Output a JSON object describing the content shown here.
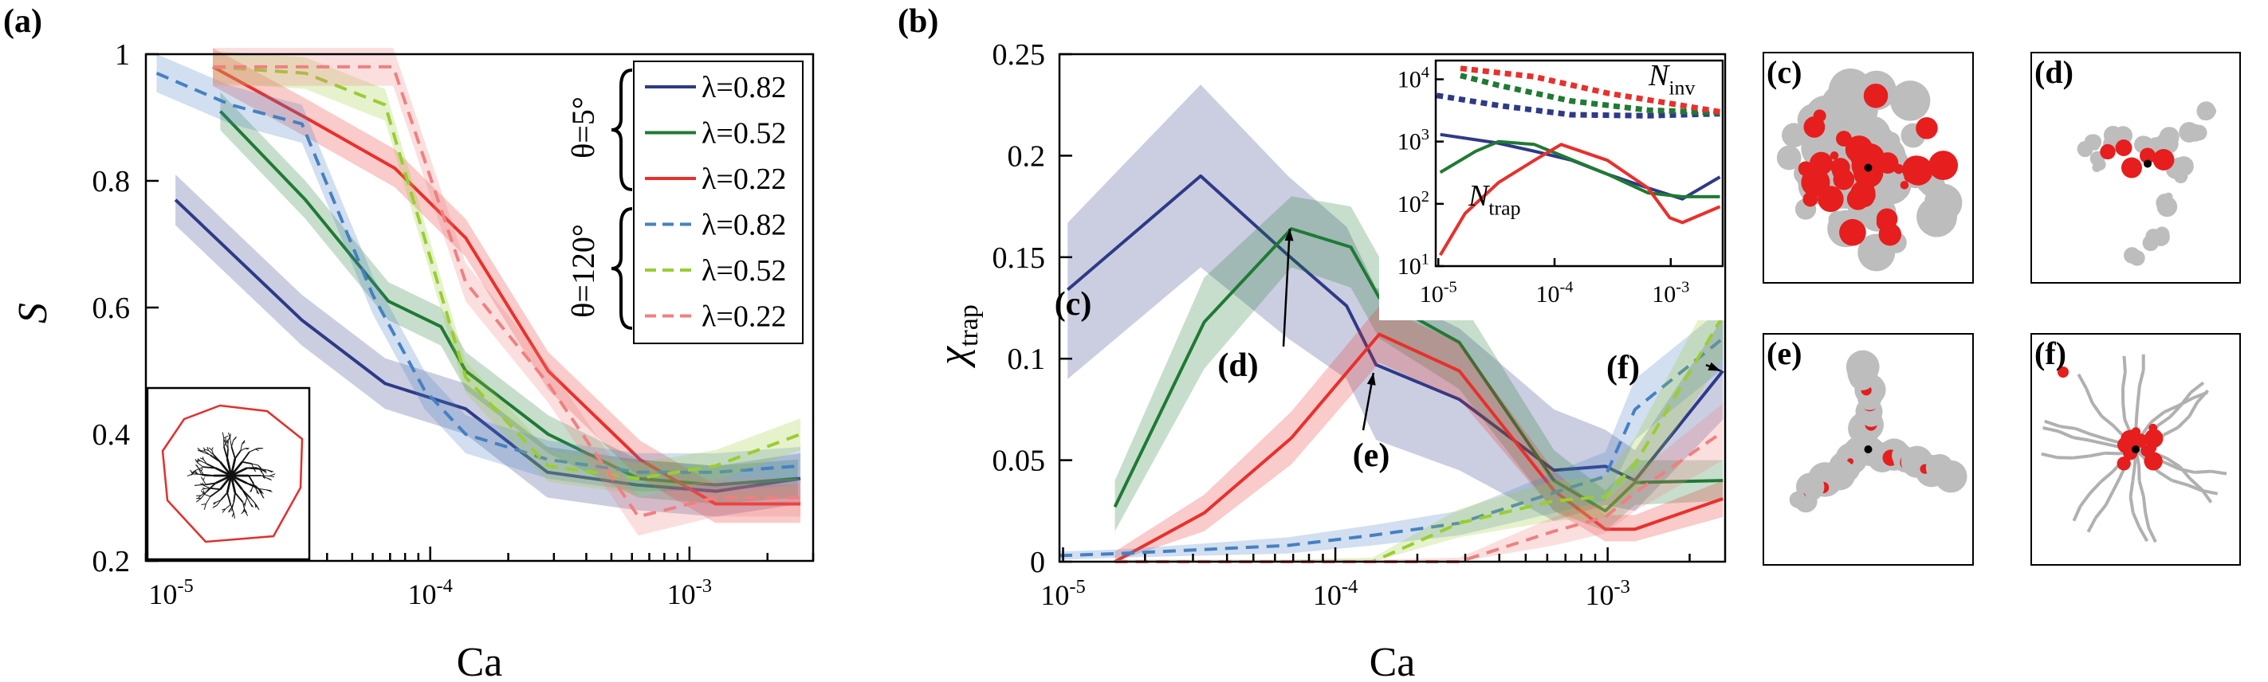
{
  "figure": {
    "panels": {
      "a": {
        "label": "(a)"
      },
      "b": {
        "label": "(b)"
      },
      "c": {
        "label": "(c)"
      },
      "d": {
        "label": "(d)"
      },
      "e": {
        "label": "(e)"
      },
      "f": {
        "label": "(f)"
      }
    }
  },
  "chart_data": [
    {
      "id": "panel-a",
      "type": "line",
      "xscale": "log",
      "xlim": [
        8e-06,
        0.003
      ],
      "ylim": [
        0.2,
        1.0
      ],
      "xlabel": "Ca",
      "ylabel": "S",
      "xticks": [
        {
          "value": 1e-05,
          "base": "10",
          "exp": "-5"
        },
        {
          "value": 0.0001,
          "base": "10",
          "exp": "-4"
        },
        {
          "value": 0.001,
          "base": "10",
          "exp": "-3"
        }
      ],
      "yticks": [
        {
          "value": 0.2,
          "label": "0.2"
        },
        {
          "value": 0.4,
          "label": "0.4"
        },
        {
          "value": 0.6,
          "label": "0.6"
        },
        {
          "value": 0.8,
          "label": "0.8"
        },
        {
          "value": 1.0,
          "label": "1"
        }
      ],
      "legend": {
        "group_labels": [
          "θ=5°",
          "θ=120°"
        ],
        "entries": [
          {
            "label": "λ=0.82",
            "series": 0
          },
          {
            "label": "λ=0.52",
            "series": 1
          },
          {
            "label": "λ=0.22",
            "series": 2
          },
          {
            "label": "λ=0.82",
            "series": 3
          },
          {
            "label": "λ=0.52",
            "series": 4
          },
          {
            "label": "λ=0.22",
            "series": 5
          }
        ]
      },
      "inset": {
        "description": "dendritic invasion pattern with convex hull"
      },
      "series": [
        {
          "name": "θ=5°, λ=0.82",
          "color": "#2e3a87",
          "dash": false,
          "x": [
            1.04e-05,
            3.2e-05,
            6.7e-05,
            0.000137,
            0.000283,
            0.000626,
            0.00127,
            0.00268
          ],
          "y": [
            0.77,
            0.58,
            0.48,
            0.44,
            0.34,
            0.32,
            0.31,
            0.33
          ],
          "band": 0.04
        },
        {
          "name": "θ=5°, λ=0.52",
          "color": "#1f7a33",
          "dash": false,
          "x": [
            1.55e-05,
            3.3e-05,
            6.9e-05,
            0.00011,
            0.000137,
            0.000285,
            0.000635,
            0.00126,
            0.00262
          ],
          "y": [
            0.91,
            0.77,
            0.61,
            0.57,
            0.5,
            0.4,
            0.33,
            0.32,
            0.33
          ],
          "band": 0.03
        },
        {
          "name": "θ=5°, λ=0.22",
          "color": "#e8302c",
          "dash": false,
          "x": [
            1.45e-05,
            3.3e-05,
            7.3e-05,
            0.000137,
            0.000285,
            0.000645,
            0.00126,
            0.00268
          ],
          "y": [
            0.98,
            0.9,
            0.82,
            0.71,
            0.5,
            0.36,
            0.29,
            0.29
          ],
          "band": 0.03
        },
        {
          "name": "θ=120°, λ=0.82",
          "color": "#4680c2",
          "dash": true,
          "x": [
            8.8e-06,
            1.7e-05,
            3.2e-05,
            6e-05,
            9.5e-05,
            0.000137,
            0.000285,
            0.000635,
            0.00126,
            0.00268
          ],
          "y": [
            0.97,
            0.92,
            0.89,
            0.62,
            0.47,
            0.4,
            0.36,
            0.34,
            0.34,
            0.35
          ],
          "band": 0.03
        },
        {
          "name": "θ=120°, λ=0.52",
          "color": "#9acd32",
          "dash": true,
          "x": [
            1.45e-05,
            3.3e-05,
            6.7e-05,
            0.000137,
            0.000285,
            0.000635,
            0.00126,
            0.00268
          ],
          "y": [
            0.98,
            0.97,
            0.92,
            0.49,
            0.35,
            0.33,
            0.35,
            0.4
          ],
          "band": 0.025
        },
        {
          "name": "θ=120°, λ=0.22",
          "color": "#f08080",
          "dash": true,
          "x": [
            1.45e-05,
            3.3e-05,
            7.2e-05,
            0.000137,
            0.000285,
            0.000635,
            0.00126,
            0.00268
          ],
          "y": [
            0.98,
            0.98,
            0.98,
            0.64,
            0.48,
            0.27,
            0.3,
            0.3
          ],
          "band": 0.03
        }
      ]
    },
    {
      "id": "panel-b",
      "type": "line",
      "xscale": "log",
      "xlim": [
        9.7e-06,
        0.0027
      ],
      "ylim": [
        0,
        0.25
      ],
      "xlabel": "Ca",
      "ylabel": "χtrap",
      "xticks": [
        {
          "value": 1e-05,
          "base": "10",
          "exp": "-5"
        },
        {
          "value": 0.0001,
          "base": "10",
          "exp": "-4"
        },
        {
          "value": 0.001,
          "base": "10",
          "exp": "-3"
        }
      ],
      "yticks": [
        {
          "value": 0,
          "label": "0"
        },
        {
          "value": 0.05,
          "label": "0.05"
        },
        {
          "value": 0.1,
          "label": "0.1"
        },
        {
          "value": 0.15,
          "label": "0.15"
        },
        {
          "value": 0.2,
          "label": "0.2"
        },
        {
          "value": 0.25,
          "label": "0.25"
        }
      ],
      "annotations": [
        {
          "label": "(c)",
          "target": [
            1.04e-05,
            0.134
          ]
        },
        {
          "label": "(d)",
          "target": [
            6.8e-05,
            0.164
          ]
        },
        {
          "label": "(e)",
          "target": [
            0.000138,
            0.093
          ]
        },
        {
          "label": "(f)",
          "target": [
            0.0026,
            0.094
          ]
        }
      ],
      "series": [
        {
          "name": "θ=5°, λ=0.82",
          "color": "#2e3a87",
          "dash": false,
          "x": [
            1.04e-05,
            3.2e-05,
            6.7e-05,
            0.00011,
            0.000141,
            0.000285,
            0.000635,
            0.00098,
            0.00126,
            0.00265
          ],
          "y": [
            0.134,
            0.19,
            0.151,
            0.126,
            0.097,
            0.08,
            0.045,
            0.047,
            0.04,
            0.094
          ],
          "lower": [
            0.09,
            0.145,
            0.11,
            0.09,
            0.06,
            0.045,
            0.02,
            0.028,
            0.025,
            0.07
          ],
          "upper": [
            0.167,
            0.235,
            0.19,
            0.165,
            0.135,
            0.115,
            0.075,
            0.065,
            0.055,
            0.12
          ]
        },
        {
          "name": "θ=5°, λ=0.52",
          "color": "#1f7a33",
          "dash": false,
          "x": [
            1.55e-05,
            3.3e-05,
            6.9e-05,
            0.000114,
            0.000145,
            0.000285,
            0.000635,
            0.00098,
            0.00126,
            0.00265
          ],
          "y": [
            0.027,
            0.118,
            0.164,
            0.155,
            0.13,
            0.108,
            0.04,
            0.025,
            0.039,
            0.04
          ],
          "lower": [
            0.015,
            0.095,
            0.145,
            0.135,
            0.11,
            0.085,
            0.025,
            0.015,
            0.028,
            0.03
          ],
          "upper": [
            0.04,
            0.14,
            0.18,
            0.175,
            0.15,
            0.13,
            0.055,
            0.035,
            0.05,
            0.05
          ]
        },
        {
          "name": "θ=5°, λ=0.22",
          "color": "#e8302c",
          "dash": false,
          "x": [
            1.55e-05,
            3.3e-05,
            6.9e-05,
            0.000145,
            0.000285,
            0.000635,
            0.00098,
            0.00126,
            0.00265
          ],
          "y": [
            0.0,
            0.024,
            0.061,
            0.112,
            0.094,
            0.035,
            0.016,
            0.016,
            0.031
          ],
          "lower": [
            0.0,
            0.015,
            0.048,
            0.098,
            0.08,
            0.025,
            0.01,
            0.01,
            0.022
          ],
          "upper": [
            0.005,
            0.033,
            0.074,
            0.126,
            0.108,
            0.045,
            0.023,
            0.023,
            0.04
          ]
        },
        {
          "name": "θ=120°, λ=0.82",
          "color": "#4680c2",
          "dash": true,
          "x": [
            9.7e-06,
            1.6e-05,
            3.3e-05,
            6.7e-05,
            0.000137,
            0.000285,
            0.000635,
            0.00098,
            0.00126,
            0.00265
          ],
          "y": [
            0.003,
            0.004,
            0.006,
            0.008,
            0.013,
            0.019,
            0.034,
            0.042,
            0.075,
            0.11
          ],
          "lower": [
            0.001,
            0.002,
            0.003,
            0.004,
            0.008,
            0.013,
            0.024,
            0.03,
            0.06,
            0.095
          ],
          "upper": [
            0.005,
            0.006,
            0.009,
            0.012,
            0.018,
            0.025,
            0.044,
            0.054,
            0.09,
            0.125
          ]
        },
        {
          "name": "θ=120°, λ=0.52",
          "color": "#9acd32",
          "dash": true,
          "x": [
            1.55e-05,
            3.3e-05,
            6.7e-05,
            0.000137,
            0.000285,
            0.000635,
            0.00098,
            0.00126,
            0.00265
          ],
          "y": [
            0.0,
            0.0,
            0.0,
            0.0,
            0.019,
            0.03,
            0.032,
            0.048,
            0.121
          ],
          "lower": [
            0.0,
            0.0,
            0.0,
            0.0,
            0.012,
            0.02,
            0.022,
            0.035,
            0.1
          ],
          "upper": [
            0.001,
            0.001,
            0.001,
            0.002,
            0.026,
            0.04,
            0.042,
            0.061,
            0.142
          ]
        },
        {
          "name": "θ=120°, λ=0.22",
          "color": "#f08080",
          "dash": true,
          "x": [
            1.55e-05,
            3.3e-05,
            6.7e-05,
            0.000137,
            0.000285,
            0.000635,
            0.00098,
            0.00126,
            0.00265
          ],
          "y": [
            0.0,
            0.0,
            0.0,
            0.0,
            0.0,
            0.015,
            0.022,
            0.034,
            0.064
          ],
          "lower": [
            0.0,
            0.0,
            0.0,
            0.0,
            0.0,
            0.008,
            0.014,
            0.025,
            0.05
          ],
          "upper": [
            0.001,
            0.001,
            0.001,
            0.001,
            0.002,
            0.022,
            0.03,
            0.043,
            0.078
          ]
        }
      ]
    },
    {
      "id": "panel-b-inset",
      "type": "line",
      "xscale": "log",
      "yscale": "log",
      "xlim": [
        9.5e-06,
        0.0028
      ],
      "ylim": [
        10,
        20000
      ],
      "xticks": [
        {
          "value": 1e-05,
          "base": "10",
          "exp": "-5"
        },
        {
          "value": 0.0001,
          "base": "10",
          "exp": "-4"
        },
        {
          "value": 0.001,
          "base": "10",
          "exp": "-3"
        }
      ],
      "yticks": [
        {
          "value": 10,
          "base": "10",
          "exp": "1"
        },
        {
          "value": 100,
          "base": "10",
          "exp": "2"
        },
        {
          "value": 1000,
          "base": "10",
          "exp": "3"
        },
        {
          "value": 10000,
          "base": "10",
          "exp": "4"
        }
      ],
      "labels": [
        {
          "text": "N",
          "sub": "inv"
        },
        {
          "text": "N",
          "sub": "trap"
        }
      ],
      "series": [
        {
          "name": "Ninv λ=0.82",
          "color": "#2e3a87",
          "dash": true,
          "x": [
            9.7e-06,
            3.3e-05,
            0.000137,
            0.000635,
            0.00265
          ],
          "y": [
            5500,
            3800,
            2700,
            2600,
            2800
          ]
        },
        {
          "name": "Ninv λ=0.52",
          "color": "#1f7a33",
          "dash": true,
          "x": [
            1.55e-05,
            3.3e-05,
            0.000137,
            0.000635,
            0.00265
          ],
          "y": [
            11500,
            8000,
            4500,
            3200,
            2900
          ]
        },
        {
          "name": "Ninv λ=0.22",
          "color": "#e8302c",
          "dash": true,
          "x": [
            1.55e-05,
            6.7e-05,
            0.000285,
            0.00126,
            0.00265
          ],
          "y": [
            15000,
            11000,
            6000,
            3800,
            3000
          ]
        },
        {
          "name": "Ntrap λ=0.82",
          "color": "#2e3a87",
          "dash": false,
          "x": [
            1.04e-05,
            3.2e-05,
            6.7e-05,
            0.000141,
            0.000285,
            0.000635,
            0.00126,
            0.00265
          ],
          "y": [
            1300,
            950,
            700,
            500,
            300,
            180,
            120,
            270
          ]
        },
        {
          "name": "Ntrap λ=0.52",
          "color": "#1f7a33",
          "dash": false,
          "x": [
            1.04e-05,
            2.1e-05,
            3.3e-05,
            6.7e-05,
            0.000114,
            0.000285,
            0.000635,
            0.00126,
            0.00265
          ],
          "y": [
            320,
            700,
            1000,
            900,
            600,
            300,
            150,
            130,
            130
          ]
        },
        {
          "name": "Ntrap λ=0.22",
          "color": "#e8302c",
          "dash": false,
          "x": [
            1.04e-05,
            1.7e-05,
            3.3e-05,
            6.7e-05,
            0.000114,
            0.000285,
            0.000635,
            0.00098,
            0.00126,
            0.00265
          ],
          "y": [
            15,
            70,
            220,
            500,
            900,
            500,
            180,
            60,
            50,
            90
          ]
        }
      ]
    }
  ]
}
